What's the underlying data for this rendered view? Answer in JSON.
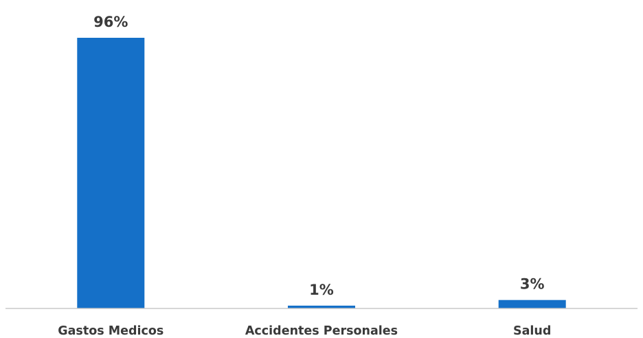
{
  "chart_data": {
    "type": "bar",
    "categories": [
      "Gastos Medicos",
      "Accidentes Personales",
      "Salud"
    ],
    "values": [
      96,
      1,
      3
    ],
    "data_labels": [
      "96%",
      "1%",
      "3%"
    ],
    "title": "",
    "xlabel": "",
    "ylabel": "",
    "ylim": [
      0,
      100
    ],
    "grid": false,
    "legend": "none",
    "bar_color": "#1570C8",
    "axis_color": "#C8C8C8",
    "text_color": "#3A3A3A"
  }
}
